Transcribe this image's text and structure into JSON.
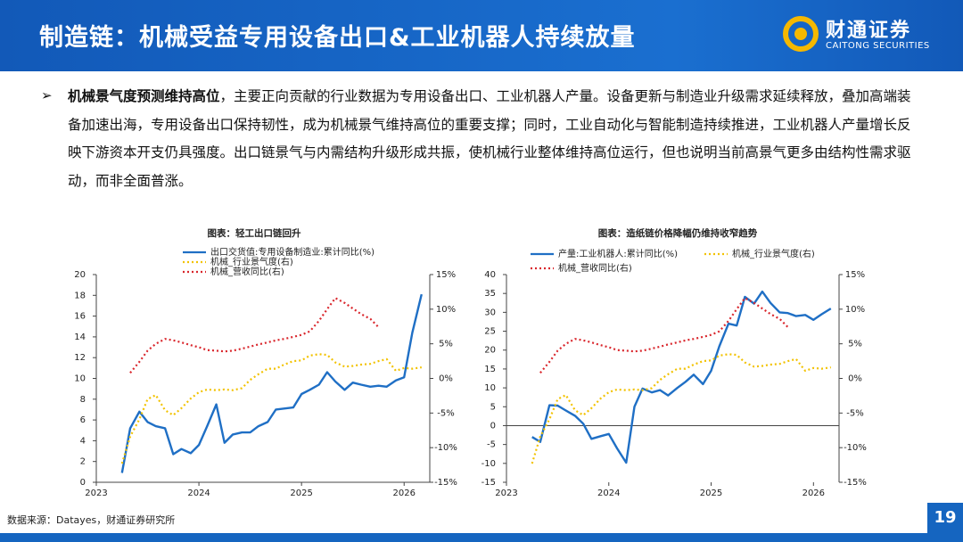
{
  "header": {
    "title": "制造链：机械受益专用设备出口&工业机器人持续放量",
    "logo_cn": "财通证券",
    "logo_en": "CAITONG SECURITIES"
  },
  "body": {
    "lead": "机械景气度预测维持高位",
    "text": "，主要正向贡献的行业数据为专用设备出口、工业机器人产量。设备更新与制造业升级需求延续释放，叠加高端装备加速出海，专用设备出口保持韧性，成为机械景气维持高位的重要支撑；同时，工业自动化与智能制造持续推进，工业机器人产量增长反映下游资本开支仍具强度。出口链景气与内需结构升级形成共振，使机械行业整体维持高位运行，但也说明当前高景气更多由结构性需求驱动，而非全面普涨。"
  },
  "footer": {
    "source": "数据来源：Datayes，财通证券研究所",
    "page": "19"
  },
  "chart_data": [
    {
      "type": "line",
      "title": "图表：轻工出口链回升",
      "x": [
        2023.25,
        2023.33,
        2023.42,
        2023.5,
        2023.58,
        2023.67,
        2023.75,
        2023.83,
        2023.92,
        2024,
        2024.08,
        2024.17,
        2024.25,
        2024.33,
        2024.42,
        2024.5,
        2024.58,
        2024.67,
        2024.75,
        2024.83,
        2024.92,
        2025,
        2025.08,
        2025.17,
        2025.25,
        2025.33,
        2025.42,
        2025.5,
        2025.58,
        2025.67,
        2025.75,
        2025.83,
        2025.92,
        2026,
        2026.08,
        2026.17
      ],
      "xlim": [
        2023,
        2026.25
      ],
      "xticks": [
        2023,
        2024,
        2025,
        2026
      ],
      "ylim": [
        0,
        20
      ],
      "yticks": [
        0,
        2,
        4,
        6,
        8,
        10,
        12,
        14,
        16,
        18,
        20
      ],
      "y2lim": [
        -15,
        15
      ],
      "y2ticks": [
        {
          "value": -15,
          "label": "-15%"
        },
        {
          "value": -10,
          "label": "-10%"
        },
        {
          "value": -5,
          "label": "-5%"
        },
        {
          "value": 0,
          "label": "0%"
        },
        {
          "value": 5,
          "label": "5%"
        },
        {
          "value": 10,
          "label": "10%"
        },
        {
          "value": 15,
          "label": "15%"
        }
      ],
      "series": [
        {
          "name": "出口交货值:专用设备制造业:累计同比(%)",
          "color": "#1f6fc5",
          "dash": "solid",
          "values": [
            0.9,
            5.2,
            6.8,
            5.8,
            5.4,
            5.2,
            2.7,
            3.2,
            2.8,
            3.6,
            5.4,
            7.5,
            3.8,
            4.6,
            4.8,
            4.8,
            5.4,
            5.8,
            7.0,
            7.1,
            7.2,
            8.5,
            8.9,
            9.4,
            10.6,
            9.7,
            8.9,
            9.6,
            9.4,
            9.2,
            9.3,
            9.2,
            9.8,
            10.1,
            14.4,
            18.1
          ]
        },
        {
          "name": "机械_行业景气度(右)",
          "color": "#f2c200",
          "dash": "dotted",
          "axis": "y2",
          "values": [
            -12.3,
            -8.4,
            -5.9,
            -3.0,
            -2.4,
            -4.6,
            -5.3,
            -4.3,
            -2.9,
            -2.0,
            -1.6,
            -1.7,
            -1.6,
            -1.7,
            -1.4,
            -0.2,
            0.6,
            1.4,
            1.4,
            2.0,
            2.5,
            2.6,
            3.3,
            3.5,
            3.4,
            2.3,
            1.7,
            1.8,
            2.0,
            2.1,
            2.5,
            2.8,
            1.1,
            1.5,
            1.4,
            1.6
          ]
        },
        {
          "name": "机械_营收同比(右)",
          "color": "#d9262c",
          "dash": "dotted",
          "axis": "y2",
          "values": [
            null,
            0.8,
            2.4,
            4.0,
            5.0,
            5.7,
            5.5,
            5.2,
            4.8,
            4.5,
            4.1,
            4.0,
            3.9,
            4.0,
            4.3,
            4.6,
            4.9,
            5.2,
            5.5,
            5.7,
            6.0,
            6.3,
            6.8,
            8.3,
            10.0,
            11.6,
            10.9,
            10.1,
            9.3,
            8.6,
            7.4,
            null,
            null,
            null,
            null,
            null
          ]
        }
      ]
    },
    {
      "type": "line",
      "title": "图表：造纸链价格降幅仍维持收窄趋势",
      "x": [
        2023.25,
        2023.33,
        2023.42,
        2023.5,
        2023.58,
        2023.67,
        2023.75,
        2023.83,
        2023.92,
        2024,
        2024.08,
        2024.17,
        2024.25,
        2024.33,
        2024.42,
        2024.5,
        2024.58,
        2024.67,
        2024.75,
        2024.83,
        2024.92,
        2025,
        2025.08,
        2025.17,
        2025.25,
        2025.33,
        2025.42,
        2025.5,
        2025.58,
        2025.67,
        2025.75,
        2025.83,
        2025.92,
        2026,
        2026.08,
        2026.17
      ],
      "xlim": [
        2023,
        2026.25
      ],
      "xticks": [
        2023,
        2024,
        2025,
        2026
      ],
      "ylim": [
        -15,
        40
      ],
      "yticks": [
        -15,
        -10,
        -5,
        0,
        5,
        10,
        15,
        20,
        25,
        30,
        35,
        40
      ],
      "y2lim": [
        -15,
        15
      ],
      "y2ticks": [
        {
          "value": -15,
          "label": "-15%"
        },
        {
          "value": -10,
          "label": "-10%"
        },
        {
          "value": -5,
          "label": "-5%"
        },
        {
          "value": 0,
          "label": "0%"
        },
        {
          "value": 5,
          "label": "5%"
        },
        {
          "value": 10,
          "label": "10%"
        },
        {
          "value": 15,
          "label": "15%"
        }
      ],
      "series": [
        {
          "name": "产量:工业机器人:累计同比(%)",
          "color": "#1f6fc5",
          "dash": "solid",
          "values": [
            -3,
            -4.3,
            5.4,
            5.3,
            4,
            2.6,
            0.5,
            -3.5,
            -2.8,
            -2.2,
            -6,
            -9.8,
            5,
            9.8,
            8.8,
            9.4,
            8,
            10,
            11.6,
            13.5,
            11,
            14.5,
            21,
            27,
            26.5,
            34.1,
            32.3,
            35.5,
            32.5,
            30,
            29.8,
            29,
            29.3,
            28,
            29.5,
            31
          ]
        },
        {
          "name": "机械_行业景气度(右)",
          "color": "#f2c200",
          "dash": "dotted",
          "axis": "y2",
          "values": [
            -12.3,
            -8.4,
            -5.9,
            -3.0,
            -2.4,
            -4.6,
            -5.3,
            -4.3,
            -2.9,
            -2.0,
            -1.6,
            -1.7,
            -1.6,
            -1.7,
            -1.4,
            -0.2,
            0.6,
            1.4,
            1.4,
            2.0,
            2.5,
            2.6,
            3.3,
            3.5,
            3.4,
            2.3,
            1.7,
            1.8,
            2.0,
            2.1,
            2.5,
            2.8,
            1.1,
            1.5,
            1.4,
            1.6
          ]
        },
        {
          "name": "机械_营收同比(右)",
          "color": "#d9262c",
          "dash": "dotted",
          "axis": "y2",
          "values": [
            null,
            0.8,
            2.4,
            4.0,
            5.0,
            5.7,
            5.5,
            5.2,
            4.8,
            4.5,
            4.1,
            4.0,
            3.9,
            4.0,
            4.3,
            4.6,
            4.9,
            5.2,
            5.5,
            5.7,
            6.0,
            6.3,
            6.8,
            8.3,
            10.0,
            11.6,
            10.9,
            10.1,
            9.3,
            8.6,
            7.4,
            null,
            null,
            null,
            null,
            null
          ]
        }
      ]
    }
  ]
}
